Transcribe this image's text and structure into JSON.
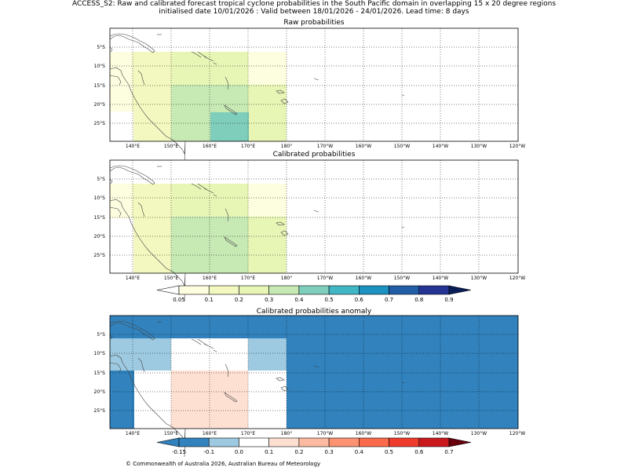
{
  "header": {
    "line1": "ACCESS_S2: Raw and calibrated forecast tropical cyclone probabilities in the South Pacific domain in overlapping 15 x 20 degree regions",
    "line2": "initialised date 10/01/2026 :  Valid between 18/01/2026 - 24/01/2026. Lead time: 8 days"
  },
  "panels": {
    "raw_title": "Raw probabilities",
    "cal_title": "Calibrated probabilities",
    "anom_title": "Calibrated probabilities anomaly"
  },
  "axes": {
    "lon_labels": [
      "140°E",
      "150°E",
      "160°E",
      "170°E",
      "180°",
      "170°W",
      "160°W",
      "150°W",
      "140°W",
      "130°W",
      "120°W"
    ],
    "lat_labels": [
      "5°S",
      "10°S",
      "15°S",
      "20°S",
      "25°S"
    ]
  },
  "colorbars": {
    "prob_labels": [
      "0.05",
      "0.1",
      "0.2",
      "0.3",
      "0.4",
      "0.5",
      "0.6",
      "0.7",
      "0.8",
      "0.9"
    ],
    "prob_colors": [
      "#fdfde0",
      "#f2f8bf",
      "#e7f5b5",
      "#c7e9b4",
      "#7fcdbb",
      "#41b6c4",
      "#1d91c0",
      "#225ea8",
      "#253494",
      "#081d58"
    ],
    "anom_labels": [
      "-0.15",
      "-0.1",
      "0.0",
      "0.1",
      "0.2",
      "0.3",
      "0.4",
      "0.5",
      "0.6",
      "0.7"
    ],
    "anom_colors": [
      "#3182bd",
      "#9ecae1",
      "#ffffff",
      "#fee0d2",
      "#fcbba1",
      "#fc9272",
      "#fb6a4a",
      "#ef3b2c",
      "#cb181d",
      "#a50f15",
      "#67000d"
    ]
  },
  "footer": {
    "copyright": "© Commonwealth of Australia 2026, Australian Bureau of Meteorology"
  }
}
